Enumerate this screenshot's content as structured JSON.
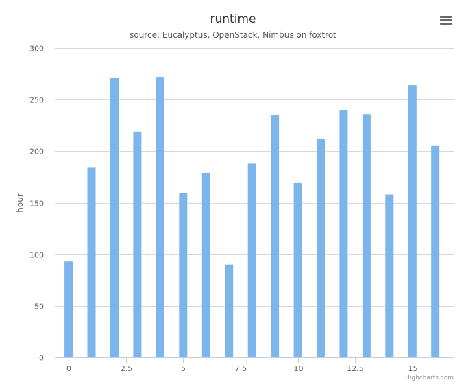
{
  "chart_data": {
    "type": "bar",
    "title": "runtime",
    "subtitle": "source: Eucalyptus, OpenStack, Nimbus on foxtrot",
    "xlabel": "",
    "ylabel": "hour",
    "credits": "Highcharts.com",
    "x": [
      0,
      1,
      2,
      3,
      4,
      5,
      6,
      7,
      8,
      9,
      10,
      11,
      12,
      13,
      14,
      15,
      16
    ],
    "values": [
      93,
      184,
      271,
      219,
      272,
      159,
      179,
      90,
      188,
      235,
      169,
      212,
      240,
      236,
      158,
      264,
      205
    ],
    "xlim": [
      -0.6,
      16.8
    ],
    "ylim": [
      0,
      300
    ],
    "xticks": [
      0,
      2.5,
      5,
      7.5,
      10,
      12.5,
      15
    ],
    "xtick_labels": [
      "0",
      "2.5",
      "5",
      "7.5",
      "10",
      "12.5",
      "15"
    ],
    "yticks": [
      0,
      50,
      100,
      150,
      200,
      250,
      300
    ],
    "ytick_labels": [
      "0",
      "50",
      "100",
      "150",
      "200",
      "250",
      "300"
    ],
    "grid": true,
    "legend": "none",
    "colors": {
      "bar": "#7cb5ec",
      "grid": "#d8d8d8",
      "axis": "#c0d0e0",
      "title": "#333333",
      "subtitle": "#555555",
      "label": "#606060",
      "credits": "#909090"
    }
  },
  "menu": {
    "icon": "hamburger-menu-icon"
  }
}
